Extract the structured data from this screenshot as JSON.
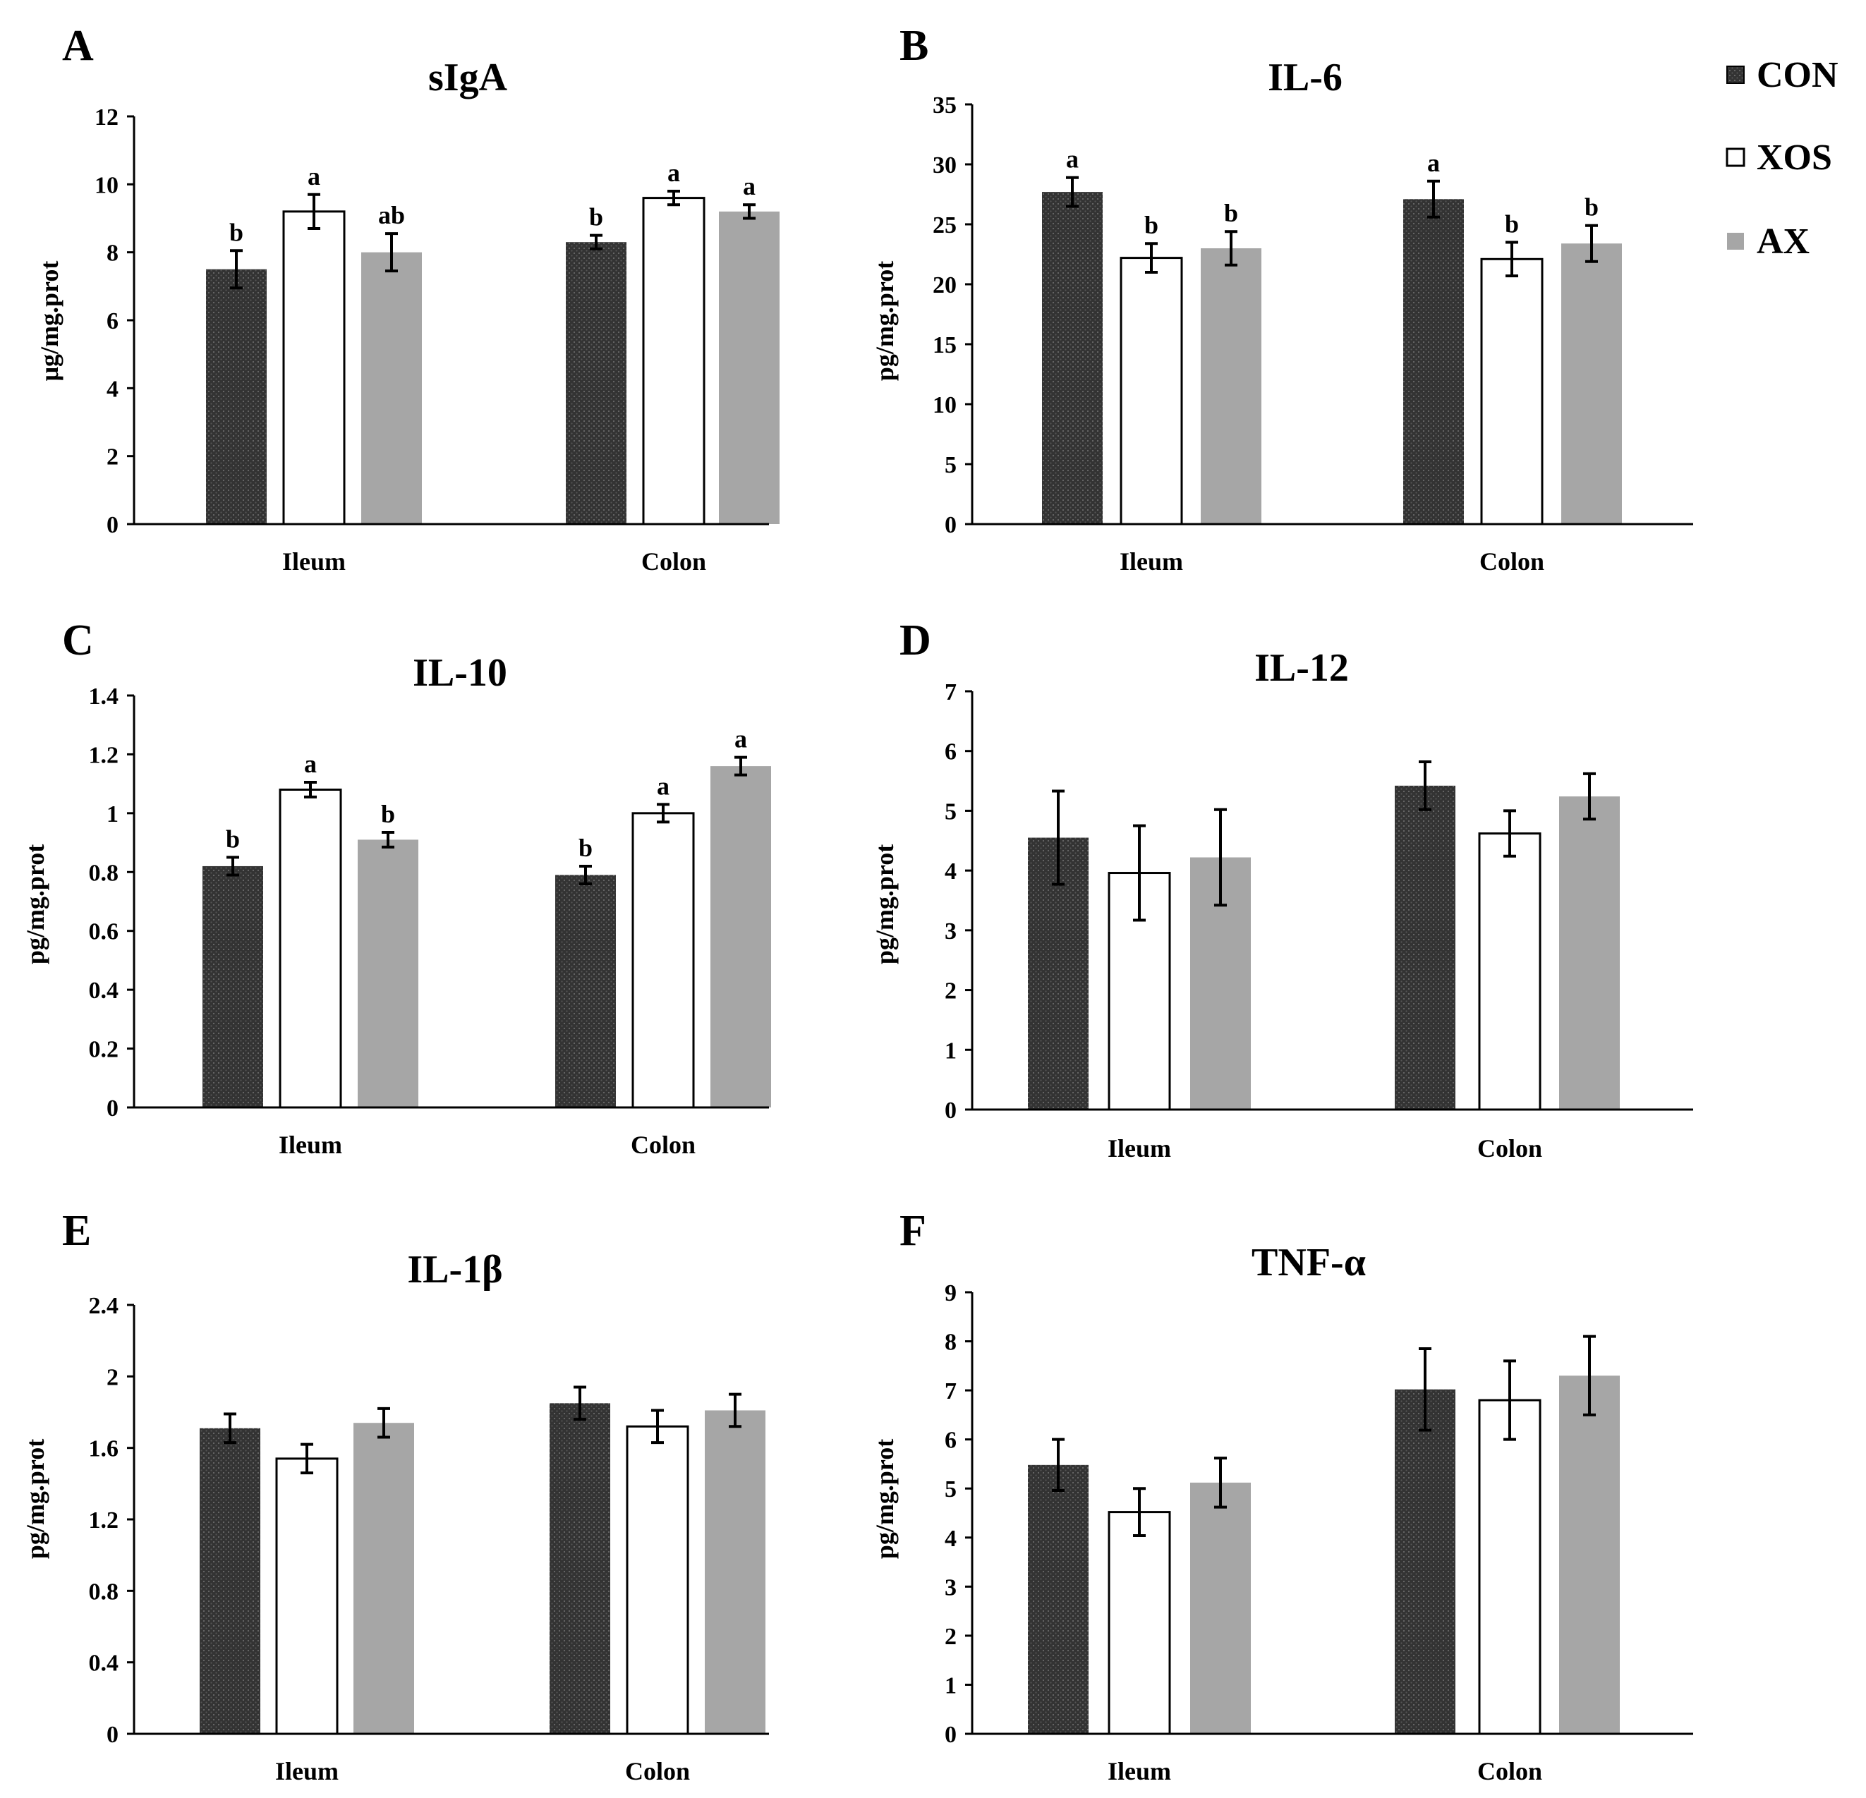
{
  "legend": {
    "items": [
      {
        "name": "CON",
        "color": "#3a3a3a",
        "pattern": "dots"
      },
      {
        "name": "XOS",
        "color": "#ffffff"
      },
      {
        "name": "AX",
        "color": "#a6a6a6"
      }
    ]
  },
  "chart_data": [
    {
      "panel": "A",
      "type": "bar",
      "title": "sIgA",
      "ylabel": "μg/mg.prot",
      "xlabel": "",
      "categories": [
        "Ileum",
        "Colon"
      ],
      "ylim": [
        0,
        12
      ],
      "yticks": [
        "0",
        "2",
        "4",
        "6",
        "8",
        "10",
        "12"
      ],
      "series": [
        {
          "name": "CON",
          "values": [
            7.5,
            8.3
          ],
          "errors": [
            0.55,
            0.2
          ],
          "letters": [
            "b",
            "b"
          ]
        },
        {
          "name": "XOS",
          "values": [
            9.2,
            9.6
          ],
          "errors": [
            0.5,
            0.2
          ],
          "letters": [
            "a",
            "a"
          ]
        },
        {
          "name": "AX",
          "values": [
            8.0,
            9.2
          ],
          "errors": [
            0.55,
            0.2
          ],
          "letters": [
            "ab",
            "a"
          ]
        }
      ]
    },
    {
      "panel": "B",
      "type": "bar",
      "title": "IL-6",
      "ylabel": "pg/mg.prot",
      "xlabel": "",
      "categories": [
        "Ileum",
        "Colon"
      ],
      "ylim": [
        0,
        35
      ],
      "yticks": [
        "0",
        "5",
        "10",
        "15",
        "20",
        "25",
        "30",
        "35"
      ],
      "series": [
        {
          "name": "CON",
          "values": [
            27.7,
            27.1
          ],
          "errors": [
            1.2,
            1.5
          ],
          "letters": [
            "a",
            "a"
          ]
        },
        {
          "name": "XOS",
          "values": [
            22.2,
            22.1
          ],
          "errors": [
            1.2,
            1.4
          ],
          "letters": [
            "b",
            "b"
          ]
        },
        {
          "name": "AX",
          "values": [
            23.0,
            23.4
          ],
          "errors": [
            1.4,
            1.5
          ],
          "letters": [
            "b",
            "b"
          ]
        }
      ]
    },
    {
      "panel": "C",
      "type": "bar",
      "title": "IL-10",
      "ylabel": "pg/mg.prot",
      "xlabel": "",
      "categories": [
        "Ileum",
        "Colon"
      ],
      "ylim": [
        0,
        1.4
      ],
      "yticks": [
        "0",
        "0.2",
        "0.4",
        "0.6",
        "0.8",
        "1",
        "1.2",
        "1.4"
      ],
      "series": [
        {
          "name": "CON",
          "values": [
            0.82,
            0.79
          ],
          "errors": [
            0.03,
            0.03
          ],
          "letters": [
            "b",
            "b"
          ]
        },
        {
          "name": "XOS",
          "values": [
            1.08,
            1.0
          ],
          "errors": [
            0.025,
            0.03
          ],
          "letters": [
            "a",
            "a"
          ]
        },
        {
          "name": "AX",
          "values": [
            0.91,
            1.16
          ],
          "errors": [
            0.025,
            0.03
          ],
          "letters": [
            "b",
            "a"
          ]
        }
      ]
    },
    {
      "panel": "D",
      "type": "bar",
      "title": "IL-12",
      "ylabel": "pg/mg.prot",
      "xlabel": "",
      "categories": [
        "Ileum",
        "Colon"
      ],
      "ylim": [
        0,
        7
      ],
      "yticks": [
        "0",
        "1",
        "2",
        "3",
        "4",
        "5",
        "6",
        "7"
      ],
      "series": [
        {
          "name": "CON",
          "values": [
            4.55,
            5.42
          ],
          "errors": [
            0.78,
            0.4
          ],
          "letters": [
            "",
            ""
          ]
        },
        {
          "name": "XOS",
          "values": [
            3.96,
            4.62
          ],
          "errors": [
            0.79,
            0.38
          ],
          "letters": [
            "",
            ""
          ]
        },
        {
          "name": "AX",
          "values": [
            4.22,
            5.24
          ],
          "errors": [
            0.8,
            0.38
          ],
          "letters": [
            "",
            ""
          ]
        }
      ]
    },
    {
      "panel": "E",
      "type": "bar",
      "title": "IL-1β",
      "ylabel": "pg/mg.prot",
      "xlabel": "",
      "categories": [
        "Ileum",
        "Colon"
      ],
      "ylim": [
        0,
        2.4
      ],
      "yticks": [
        "0",
        "0.4",
        "0.8",
        "1.2",
        "1.6",
        "2",
        "2.4"
      ],
      "series": [
        {
          "name": "CON",
          "values": [
            1.71,
            1.85
          ],
          "errors": [
            0.08,
            0.09
          ],
          "letters": [
            "",
            ""
          ]
        },
        {
          "name": "XOS",
          "values": [
            1.54,
            1.72
          ],
          "errors": [
            0.08,
            0.09
          ],
          "letters": [
            "",
            ""
          ]
        },
        {
          "name": "AX",
          "values": [
            1.74,
            1.81
          ],
          "errors": [
            0.08,
            0.09
          ],
          "letters": [
            "",
            ""
          ]
        }
      ]
    },
    {
      "panel": "F",
      "type": "bar",
      "title": "TNF-α",
      "ylabel": "pg/mg.prot",
      "xlabel": "",
      "categories": [
        "Ileum",
        "Colon"
      ],
      "ylim": [
        0,
        9
      ],
      "yticks": [
        "0",
        "1",
        "2",
        "3",
        "4",
        "5",
        "6",
        "7",
        "8",
        "9"
      ],
      "series": [
        {
          "name": "CON",
          "values": [
            5.48,
            7.02
          ],
          "errors": [
            0.52,
            0.83
          ],
          "letters": [
            "",
            ""
          ]
        },
        {
          "name": "XOS",
          "values": [
            4.52,
            6.8
          ],
          "errors": [
            0.48,
            0.8
          ],
          "letters": [
            "",
            ""
          ]
        },
        {
          "name": "AX",
          "values": [
            5.12,
            7.3
          ],
          "errors": [
            0.5,
            0.8
          ],
          "letters": [
            "",
            ""
          ]
        }
      ]
    }
  ]
}
